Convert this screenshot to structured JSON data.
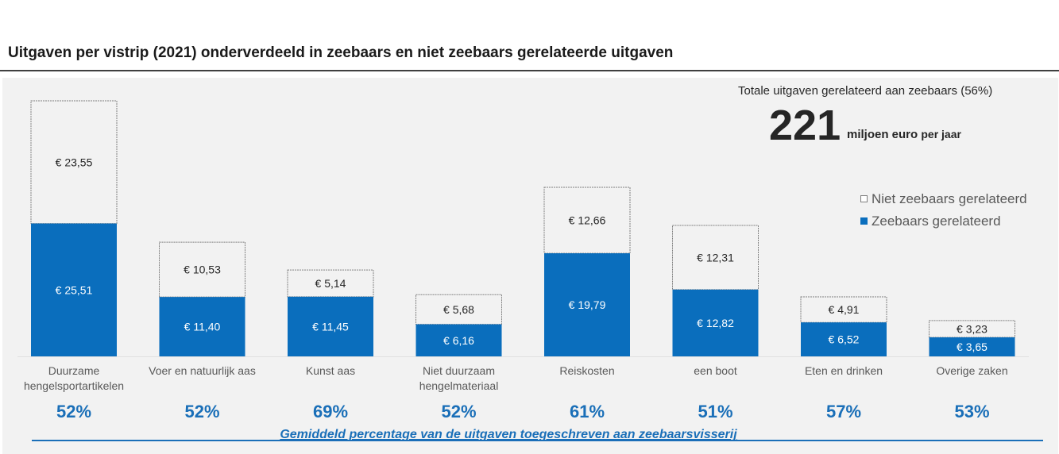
{
  "title": "Uitgaven per vistrip (2021) onderverdeeld in zeebaars en niet zeebaars gerelateerde uitgaven",
  "total_box": {
    "subtitle": "Totale uitgaven gerelateerd aan zeebaars (56%)",
    "value": "221",
    "unit_bold": "miljoen euro",
    "unit_rest": "per jaar"
  },
  "colors": {
    "zeebaars": "#0a6ebd",
    "niet_zeebaars": "#f2f2f2",
    "percent_text": "#1a6fb8",
    "panel": "#f2f2f2"
  },
  "chart_data": {
    "type": "bar",
    "stacked": true,
    "title": "Uitgaven per vistrip (2021) onderverdeeld in zeebaars en niet zeebaars gerelateerde uitgaven",
    "xlabel": "",
    "ylabel": "",
    "ylim": [
      0,
      49.06
    ],
    "grid": false,
    "legend_position": "right",
    "categories": [
      [
        "Duurzame",
        "hengelsportartikelen"
      ],
      [
        "Voer en natuurlijk aas"
      ],
      [
        "Kunst aas"
      ],
      [
        "Niet duurzaam",
        "hengelmateriaal"
      ],
      [
        "Reiskosten"
      ],
      [
        "een boot"
      ],
      [
        "Eten en drinken"
      ],
      [
        "Overige zaken"
      ]
    ],
    "series": [
      {
        "name": "Zeebaars gerelateerd",
        "values": [
          25.51,
          11.4,
          11.45,
          6.16,
          19.79,
          12.82,
          6.52,
          3.65
        ],
        "labels": [
          "€ 25,51",
          "€ 11,40",
          "€ 11,45",
          "€ 6,16",
          "€ 19,79",
          "€ 12,82",
          "€ 6,52",
          "€ 3,65"
        ]
      },
      {
        "name": "Niet zeebaars gerelateerd",
        "values": [
          23.55,
          10.53,
          5.14,
          5.68,
          12.66,
          12.31,
          4.91,
          3.23
        ],
        "labels": [
          "€ 23,55",
          "€ 10,53",
          "€ 5,14",
          "€ 5,68",
          "€ 12,66",
          "€ 12,31",
          "€ 4,91",
          "€ 3,23"
        ]
      }
    ],
    "percentages": [
      "52%",
      "52%",
      "69%",
      "52%",
      "61%",
      "51%",
      "57%",
      "53%"
    ],
    "percent_caption": "Gemiddeld percentage van de uitgaven  toegeschreven aan zeebaarsvisserij"
  }
}
